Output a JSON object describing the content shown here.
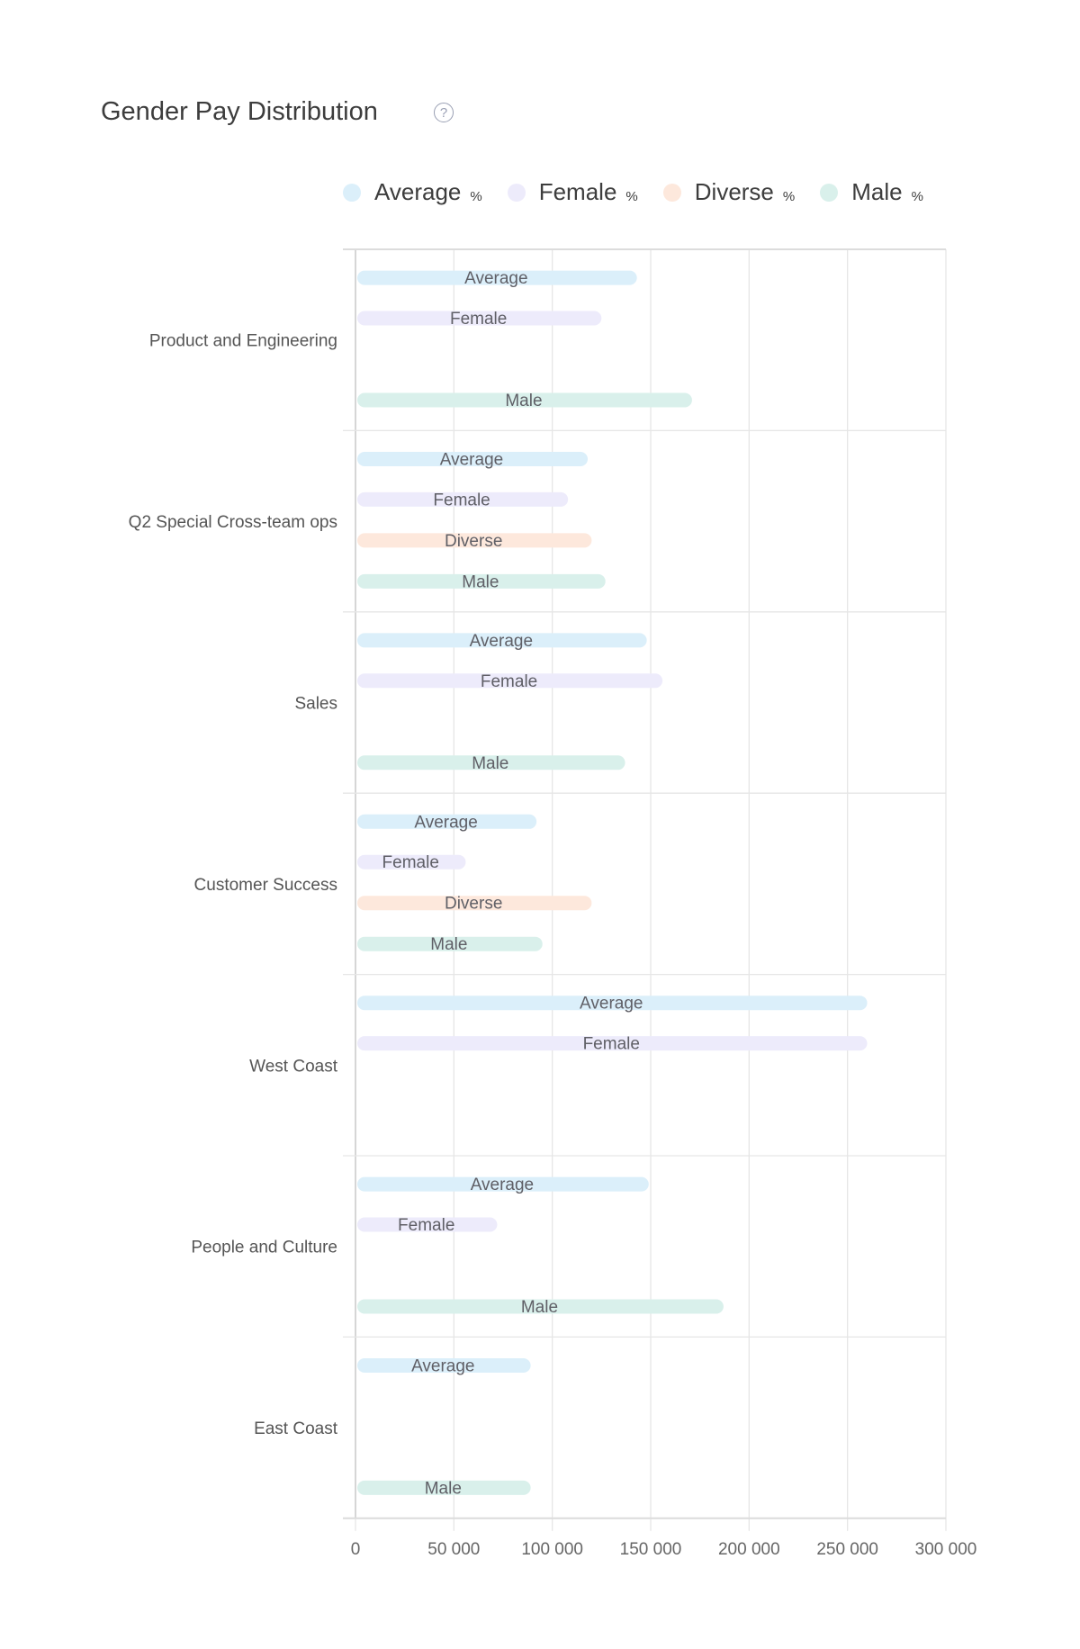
{
  "header": {
    "title": "Gender Pay Distribution",
    "help_icon": "question-circle-icon"
  },
  "legend": [
    {
      "label": "Average",
      "unit": "%",
      "color": "#dbeffa"
    },
    {
      "label": "Female",
      "unit": "%",
      "color": "#edebfb"
    },
    {
      "label": "Diverse",
      "unit": "%",
      "color": "#fde8dc"
    },
    {
      "label": "Male",
      "unit": "%",
      "color": "#d9f0eb"
    }
  ],
  "chart_data": {
    "type": "bar",
    "orientation": "horizontal",
    "categories": [
      "Product and Engineering",
      "Q2 Special Cross-team ops",
      "Sales",
      "Customer Success",
      "West Coast",
      "People and Culture",
      "East Coast"
    ],
    "series": [
      {
        "name": "Average",
        "color": "#dbeffa",
        "values": [
          143000,
          118000,
          148000,
          92000,
          260000,
          149000,
          89000
        ]
      },
      {
        "name": "Female",
        "color": "#edebfb",
        "values": [
          125000,
          108000,
          156000,
          56000,
          260000,
          72000,
          null
        ]
      },
      {
        "name": "Diverse",
        "color": "#fde8dc",
        "values": [
          null,
          120000,
          null,
          120000,
          null,
          null,
          null
        ]
      },
      {
        "name": "Male",
        "color": "#d9f0eb",
        "values": [
          171000,
          127000,
          137000,
          95000,
          null,
          187000,
          89000
        ]
      }
    ],
    "xlim": [
      0,
      300000
    ],
    "xticks": [
      "0",
      "50 000",
      "100 000",
      "150 000",
      "200 000",
      "250 000",
      "300 000"
    ],
    "xtick_values": [
      0,
      50000,
      100000,
      150000,
      200000,
      250000,
      300000
    ],
    "grid": true,
    "legend_position": "top",
    "bar_labels": "series name inside bar"
  }
}
